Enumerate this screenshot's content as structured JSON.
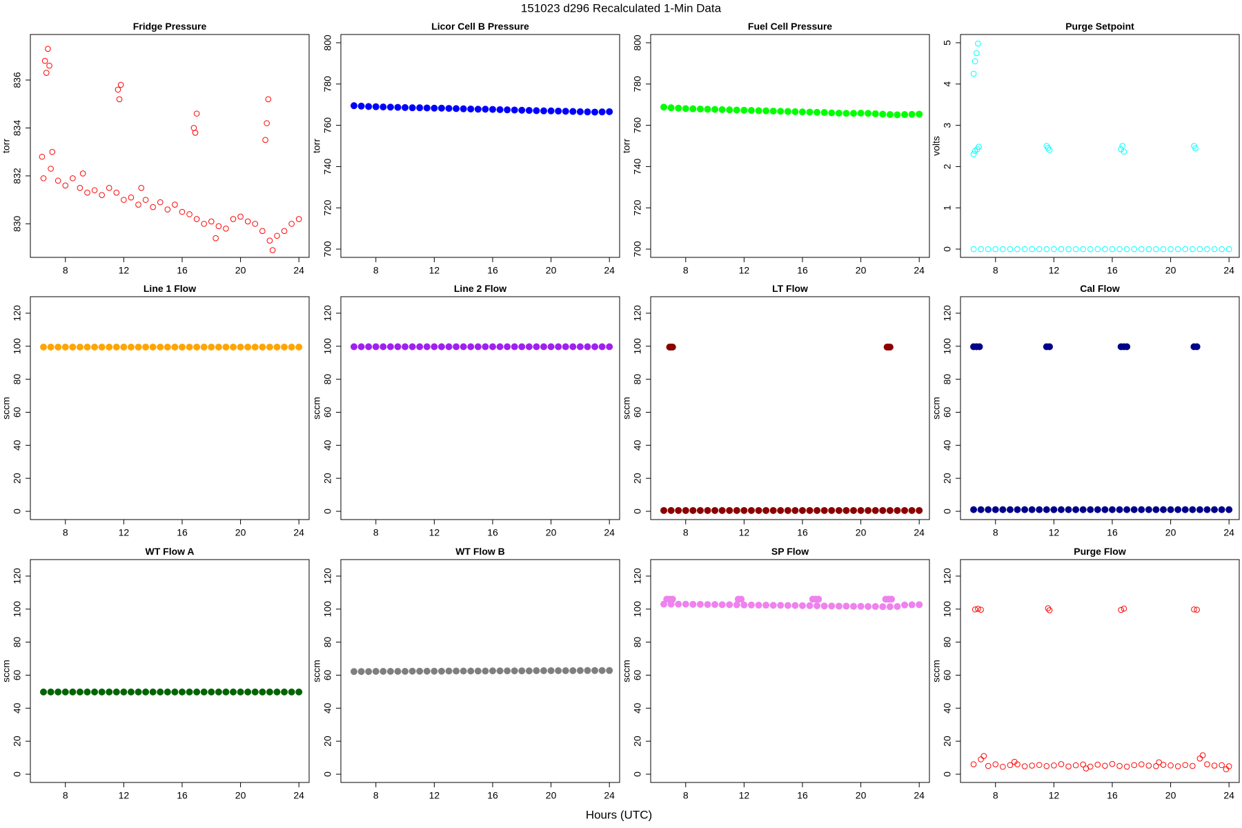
{
  "title": "151023   d296   Recalculated 1-Min Data",
  "xlabel": "Hours (UTC)",
  "chart_data": [
    {
      "type": "scatter",
      "title": "Fridge Pressure",
      "ylabel": "torr",
      "color": "#ff0000",
      "marker": "open",
      "x": [
        6.5,
        7,
        7.5,
        8,
        8.5,
        9,
        9.5,
        10,
        10.5,
        11,
        11.5,
        12,
        12.5,
        13,
        13.5,
        14,
        14.5,
        15,
        15.5,
        16,
        16.5,
        17,
        17.5,
        18,
        18.5,
        19,
        19.5,
        20,
        20.5,
        21,
        21.5,
        22,
        22.5,
        23,
        23.5,
        24,
        6.4,
        6.6,
        6.7,
        6.8,
        6.9,
        7.1,
        11.6,
        11.7,
        11.8,
        16.8,
        16.9,
        17.0,
        21.7,
        21.8,
        21.9,
        9.2,
        13.2,
        18.3,
        22.2
      ],
      "values": [
        831.9,
        832.3,
        831.8,
        831.6,
        831.9,
        831.5,
        831.3,
        831.4,
        831.2,
        831.5,
        831.3,
        831.0,
        831.1,
        830.8,
        831.0,
        830.7,
        830.9,
        830.6,
        830.8,
        830.5,
        830.4,
        830.2,
        830.0,
        830.1,
        829.9,
        829.8,
        830.2,
        830.3,
        830.1,
        830.0,
        829.7,
        829.3,
        829.5,
        829.7,
        830.0,
        830.2,
        832.8,
        836.8,
        836.3,
        837.3,
        836.6,
        833.0,
        835.6,
        835.2,
        835.8,
        834.0,
        833.8,
        834.6,
        833.5,
        834.2,
        835.2,
        832.1,
        831.5,
        829.4,
        828.9
      ],
      "xlim": [
        5.6,
        24.7
      ],
      "ylim": [
        828.6,
        837.9
      ],
      "xticks": [
        8,
        12,
        16,
        20,
        24
      ],
      "yticks": [
        830,
        832,
        834,
        836
      ]
    },
    {
      "type": "scatter",
      "title": "Licor Cell B Pressure",
      "ylabel": "torr",
      "color": "#0000ff",
      "marker": "filled",
      "x": [
        6.5,
        7,
        7.5,
        8,
        8.5,
        9,
        9.5,
        10,
        10.5,
        11,
        11.5,
        12,
        12.5,
        13,
        13.5,
        14,
        14.5,
        15,
        15.5,
        16,
        16.5,
        17,
        17.5,
        18,
        18.5,
        19,
        19.5,
        20,
        20.5,
        21,
        21.5,
        22,
        22.5,
        23,
        23.5,
        24
      ],
      "values": [
        769.5,
        769.3,
        769.1,
        769.0,
        768.9,
        768.8,
        768.7,
        768.6,
        768.5,
        768.5,
        768.4,
        768.3,
        768.3,
        768.2,
        768.1,
        768.0,
        767.9,
        767.8,
        767.8,
        767.7,
        767.6,
        767.5,
        767.4,
        767.3,
        767.2,
        767.1,
        767.0,
        767.0,
        766.9,
        766.8,
        766.7,
        766.6,
        766.5,
        766.4,
        766.5,
        766.6
      ],
      "xlim": [
        5.6,
        24.7
      ],
      "ylim": [
        696,
        804
      ],
      "xticks": [
        8,
        12,
        16,
        20,
        24
      ],
      "yticks": [
        700,
        720,
        740,
        760,
        780,
        800
      ]
    },
    {
      "type": "scatter",
      "title": "Fuel Cell Pressure",
      "ylabel": "torr",
      "color": "#00ff00",
      "marker": "filled",
      "x": [
        6.5,
        7,
        7.5,
        8,
        8.5,
        9,
        9.5,
        10,
        10.5,
        11,
        11.5,
        12,
        12.5,
        13,
        13.5,
        14,
        14.5,
        15,
        15.5,
        16,
        16.5,
        17,
        17.5,
        18,
        18.5,
        19,
        19.5,
        20,
        20.5,
        21,
        21.5,
        22,
        22.5,
        23,
        23.5,
        24
      ],
      "values": [
        768.8,
        768.5,
        768.3,
        768.1,
        768.0,
        767.9,
        767.8,
        767.7,
        767.6,
        767.5,
        767.4,
        767.3,
        767.2,
        767.1,
        767.0,
        766.9,
        766.8,
        766.7,
        766.6,
        766.5,
        766.4,
        766.3,
        766.2,
        766.0,
        765.9,
        765.8,
        765.8,
        765.9,
        765.8,
        765.6,
        765.4,
        765.2,
        765.1,
        765.2,
        765.3,
        765.4
      ],
      "xlim": [
        5.6,
        24.7
      ],
      "ylim": [
        696,
        804
      ],
      "xticks": [
        8,
        12,
        16,
        20,
        24
      ],
      "yticks": [
        700,
        720,
        740,
        760,
        780,
        800
      ]
    },
    {
      "type": "scatter",
      "title": "Purge Setpoint",
      "ylabel": "volts",
      "color": "#00ffff",
      "marker": "open",
      "x": [
        6.5,
        7,
        7.5,
        8,
        8.5,
        9,
        9.5,
        10,
        10.5,
        11,
        11.5,
        12,
        12.5,
        13,
        13.5,
        14,
        14.5,
        15,
        15.5,
        16,
        16.5,
        17,
        17.5,
        18,
        18.5,
        19,
        19.5,
        20,
        20.5,
        21,
        21.5,
        22,
        22.5,
        23,
        23.5,
        24,
        6.5,
        6.6,
        6.7,
        6.8,
        6.5,
        6.6,
        6.75,
        6.85,
        11.5,
        11.6,
        11.7,
        16.6,
        16.7,
        16.8,
        21.6,
        21.7
      ],
      "values": [
        0,
        0,
        0,
        0,
        0,
        0,
        0,
        0,
        0,
        0,
        0,
        0,
        0,
        0,
        0,
        0,
        0,
        0,
        0,
        0,
        0,
        0,
        0,
        0,
        0,
        0,
        0,
        0,
        0,
        0,
        0,
        0,
        0,
        0,
        0,
        0,
        4.25,
        4.55,
        4.75,
        4.98,
        2.3,
        2.38,
        2.42,
        2.48,
        2.5,
        2.45,
        2.4,
        2.42,
        2.5,
        2.36,
        2.5,
        2.44
      ],
      "xlim": [
        5.6,
        24.7
      ],
      "ylim": [
        -0.2,
        5.2
      ],
      "xticks": [
        8,
        12,
        16,
        20,
        24
      ],
      "yticks": [
        0,
        1,
        2,
        3,
        4,
        5
      ]
    },
    {
      "type": "scatter",
      "title": "Line 1 Flow",
      "ylabel": "sccm",
      "color": "#ffa500",
      "marker": "filled",
      "x": [
        6.5,
        7,
        7.5,
        8,
        8.5,
        9,
        9.5,
        10,
        10.5,
        11,
        11.5,
        12,
        12.5,
        13,
        13.5,
        14,
        14.5,
        15,
        15.5,
        16,
        16.5,
        17,
        17.5,
        18,
        18.5,
        19,
        19.5,
        20,
        20.5,
        21,
        21.5,
        22,
        22.5,
        23,
        23.5,
        24
      ],
      "values": [
        99.5,
        99.5,
        99.5,
        99.5,
        99.5,
        99.5,
        99.5,
        99.5,
        99.5,
        99.5,
        99.5,
        99.5,
        99.5,
        99.5,
        99.5,
        99.5,
        99.5,
        99.5,
        99.5,
        99.5,
        99.5,
        99.5,
        99.5,
        99.5,
        99.5,
        99.5,
        99.5,
        99.5,
        99.5,
        99.5,
        99.5,
        99.5,
        99.5,
        99.5,
        99.5,
        99.5
      ],
      "xlim": [
        5.6,
        24.7
      ],
      "ylim": [
        -5,
        130
      ],
      "xticks": [
        8,
        12,
        16,
        20,
        24
      ],
      "yticks": [
        0,
        20,
        40,
        60,
        80,
        100,
        120
      ]
    },
    {
      "type": "scatter",
      "title": "Line 2 Flow",
      "ylabel": "sccm",
      "color": "#a020f0",
      "marker": "filled",
      "x": [
        6.5,
        7,
        7.5,
        8,
        8.5,
        9,
        9.5,
        10,
        10.5,
        11,
        11.5,
        12,
        12.5,
        13,
        13.5,
        14,
        14.5,
        15,
        15.5,
        16,
        16.5,
        17,
        17.5,
        18,
        18.5,
        19,
        19.5,
        20,
        20.5,
        21,
        21.5,
        22,
        22.5,
        23,
        23.5,
        24
      ],
      "values": [
        99.7,
        99.7,
        99.7,
        99.7,
        99.7,
        99.7,
        99.7,
        99.7,
        99.7,
        99.7,
        99.7,
        99.7,
        99.7,
        99.7,
        99.7,
        99.7,
        99.7,
        99.7,
        99.7,
        99.7,
        99.7,
        99.7,
        99.7,
        99.7,
        99.7,
        99.7,
        99.7,
        99.7,
        99.7,
        99.7,
        99.7,
        99.7,
        99.7,
        99.7,
        99.7,
        99.7
      ],
      "xlim": [
        5.6,
        24.7
      ],
      "ylim": [
        -5,
        130
      ],
      "xticks": [
        8,
        12,
        16,
        20,
        24
      ],
      "yticks": [
        0,
        20,
        40,
        60,
        80,
        100,
        120
      ]
    },
    {
      "type": "scatter",
      "title": "LT Flow",
      "ylabel": "sccm",
      "color": "#8b0000",
      "marker": "filled",
      "x": [
        6.5,
        7,
        7.5,
        8,
        8.5,
        9,
        9.5,
        10,
        10.5,
        11,
        11.5,
        12,
        12.5,
        13,
        13.5,
        14,
        14.5,
        15,
        15.5,
        16,
        16.5,
        17,
        17.5,
        18,
        18.5,
        19,
        19.5,
        20,
        20.5,
        21,
        21.5,
        22,
        22.5,
        23,
        23.5,
        24,
        6.9,
        7.0,
        7.1,
        21.8,
        21.9,
        22.0
      ],
      "values": [
        0.5,
        0.5,
        0.5,
        0.5,
        0.5,
        0.5,
        0.5,
        0.5,
        0.5,
        0.5,
        0.5,
        0.5,
        0.5,
        0.5,
        0.5,
        0.5,
        0.5,
        0.5,
        0.5,
        0.5,
        0.5,
        0.5,
        0.5,
        0.5,
        0.5,
        0.5,
        0.5,
        0.5,
        0.5,
        0.5,
        0.5,
        0.5,
        0.5,
        0.5,
        0.5,
        0.5,
        99.5,
        99.5,
        99.5,
        99.5,
        99.5,
        99.5
      ],
      "xlim": [
        5.6,
        24.7
      ],
      "ylim": [
        -5,
        130
      ],
      "xticks": [
        8,
        12,
        16,
        20,
        24
      ],
      "yticks": [
        0,
        20,
        40,
        60,
        80,
        100,
        120
      ]
    },
    {
      "type": "scatter",
      "title": "Cal Flow",
      "ylabel": "sccm",
      "color": "#00008b",
      "marker": "filled",
      "x": [
        6.5,
        7,
        7.5,
        8,
        8.5,
        9,
        9.5,
        10,
        10.5,
        11,
        11.5,
        12,
        12.5,
        13,
        13.5,
        14,
        14.5,
        15,
        15.5,
        16,
        16.5,
        17,
        17.5,
        18,
        18.5,
        19,
        19.5,
        20,
        20.5,
        21,
        21.5,
        22,
        22.5,
        23,
        23.5,
        24,
        6.5,
        6.7,
        6.9,
        11.5,
        11.7,
        16.6,
        16.8,
        17.0,
        21.6,
        21.8
      ],
      "values": [
        1,
        1,
        1,
        1,
        1,
        1,
        1,
        1,
        1,
        1,
        1,
        1,
        1,
        1,
        1,
        1,
        1,
        1,
        1,
        1,
        1,
        1,
        1,
        1,
        1,
        1,
        1,
        1,
        1,
        1,
        1,
        1,
        1,
        1,
        1,
        1,
        99.7,
        99.7,
        99.7,
        99.7,
        99.7,
        99.7,
        99.7,
        99.7,
        99.7,
        99.7
      ],
      "xlim": [
        5.6,
        24.7
      ],
      "ylim": [
        -5,
        130
      ],
      "xticks": [
        8,
        12,
        16,
        20,
        24
      ],
      "yticks": [
        0,
        20,
        40,
        60,
        80,
        100,
        120
      ]
    },
    {
      "type": "scatter",
      "title": "WT Flow A",
      "ylabel": "sccm",
      "color": "#006400",
      "marker": "filled",
      "x": [
        6.5,
        7,
        7.5,
        8,
        8.5,
        9,
        9.5,
        10,
        10.5,
        11,
        11.5,
        12,
        12.5,
        13,
        13.5,
        14,
        14.5,
        15,
        15.5,
        16,
        16.5,
        17,
        17.5,
        18,
        18.5,
        19,
        19.5,
        20,
        20.5,
        21,
        21.5,
        22,
        22.5,
        23,
        23.5,
        24
      ],
      "values": [
        49.8,
        49.8,
        49.8,
        49.8,
        49.8,
        49.8,
        49.8,
        49.8,
        49.8,
        49.8,
        49.8,
        49.8,
        49.8,
        49.8,
        49.8,
        49.8,
        49.8,
        49.8,
        49.8,
        49.8,
        49.8,
        49.8,
        49.8,
        49.8,
        49.8,
        49.8,
        49.8,
        49.8,
        49.8,
        49.8,
        49.8,
        49.8,
        49.8,
        49.8,
        49.8,
        49.8
      ],
      "xlim": [
        5.6,
        24.7
      ],
      "ylim": [
        -5,
        130
      ],
      "xticks": [
        8,
        12,
        16,
        20,
        24
      ],
      "yticks": [
        0,
        20,
        40,
        60,
        80,
        100,
        120
      ]
    },
    {
      "type": "scatter",
      "title": "WT Flow B",
      "ylabel": "sccm",
      "color": "#7f7f7f",
      "marker": "filled",
      "x": [
        6.5,
        7,
        7.5,
        8,
        8.5,
        9,
        9.5,
        10,
        10.5,
        11,
        11.5,
        12,
        12.5,
        13,
        13.5,
        14,
        14.5,
        15,
        15.5,
        16,
        16.5,
        17,
        17.5,
        18,
        18.5,
        19,
        19.5,
        20,
        20.5,
        21,
        21.5,
        22,
        22.5,
        23,
        23.5,
        24
      ],
      "values": [
        62.2,
        62.2,
        62.2,
        62.3,
        62.3,
        62.3,
        62.3,
        62.3,
        62.4,
        62.4,
        62.4,
        62.4,
        62.4,
        62.5,
        62.5,
        62.5,
        62.5,
        62.5,
        62.5,
        62.6,
        62.6,
        62.6,
        62.6,
        62.6,
        62.6,
        62.7,
        62.7,
        62.7,
        62.7,
        62.7,
        62.7,
        62.8,
        62.8,
        62.8,
        62.8,
        62.8
      ],
      "xlim": [
        5.6,
        24.7
      ],
      "ylim": [
        -5,
        130
      ],
      "xticks": [
        8,
        12,
        16,
        20,
        24
      ],
      "yticks": [
        0,
        20,
        40,
        60,
        80,
        100,
        120
      ]
    },
    {
      "type": "scatter",
      "title": "SP Flow",
      "ylabel": "sccm",
      "color": "#ee82ee",
      "marker": "filled",
      "x": [
        6.5,
        7,
        7.5,
        8,
        8.5,
        9,
        9.5,
        10,
        10.5,
        11,
        11.5,
        12,
        12.5,
        13,
        13.5,
        14,
        14.5,
        15,
        15.5,
        16,
        16.5,
        17,
        17.5,
        18,
        18.5,
        19,
        19.5,
        20,
        20.5,
        21,
        21.5,
        22,
        22.5,
        23,
        23.5,
        24,
        6.7,
        6.9,
        7.1,
        11.6,
        11.8,
        16.7,
        16.9,
        17.1,
        21.7,
        21.9,
        22.1
      ],
      "values": [
        103,
        103,
        103,
        103,
        102.9,
        102.9,
        102.8,
        102.8,
        102.7,
        102.7,
        102.6,
        102.5,
        102.5,
        102.4,
        102.4,
        102.3,
        102.3,
        102.2,
        102.2,
        102.1,
        102.1,
        102.0,
        101.9,
        101.9,
        101.8,
        101.8,
        101.7,
        101.7,
        101.6,
        101.6,
        101.5,
        101.5,
        101.6,
        102.5,
        102.6,
        102.7,
        106,
        106,
        106,
        106,
        106,
        106,
        106,
        106,
        106,
        106,
        106
      ],
      "xlim": [
        5.6,
        24.7
      ],
      "ylim": [
        -5,
        130
      ],
      "xticks": [
        8,
        12,
        16,
        20,
        24
      ],
      "yticks": [
        0,
        20,
        40,
        60,
        80,
        100,
        120
      ]
    },
    {
      "type": "scatter",
      "title": "Purge Flow",
      "ylabel": "sccm",
      "color": "#ff0000",
      "marker": "open",
      "x": [
        6.5,
        7,
        7.5,
        8,
        8.5,
        9,
        9.5,
        10,
        10.5,
        11,
        11.5,
        12,
        12.5,
        13,
        13.5,
        14,
        14.5,
        15,
        15.5,
        16,
        16.5,
        17,
        17.5,
        18,
        18.5,
        19,
        19.5,
        20,
        20.5,
        21,
        21.5,
        22,
        22.5,
        23,
        23.5,
        24,
        6.6,
        6.8,
        7.0,
        7.2,
        11.6,
        11.7,
        16.6,
        16.8,
        21.6,
        21.8,
        9.3,
        14.2,
        19.2,
        23.8,
        22.2
      ],
      "values": [
        6,
        9,
        5,
        6,
        4.5,
        5.5,
        6,
        4.8,
        5.2,
        5.6,
        4.9,
        5.3,
        6.1,
        4.7,
        5.4,
        5.9,
        4.6,
        5.8,
        5.1,
        6.2,
        5.0,
        4.6,
        5.5,
        6.0,
        5.2,
        4.9,
        5.7,
        5.3,
        4.8,
        5.6,
        5.0,
        9.5,
        6.0,
        5.2,
        5.5,
        4.8,
        99.8,
        100.2,
        99.6,
        11,
        100.5,
        99.3,
        99.5,
        100.3,
        99.8,
        99.6,
        7.5,
        3.5,
        7.2,
        3.0,
        11.5
      ],
      "xlim": [
        5.6,
        24.7
      ],
      "ylim": [
        -5,
        130
      ],
      "xticks": [
        8,
        12,
        16,
        20,
        24
      ],
      "yticks": [
        0,
        20,
        40,
        60,
        80,
        100,
        120
      ]
    }
  ]
}
